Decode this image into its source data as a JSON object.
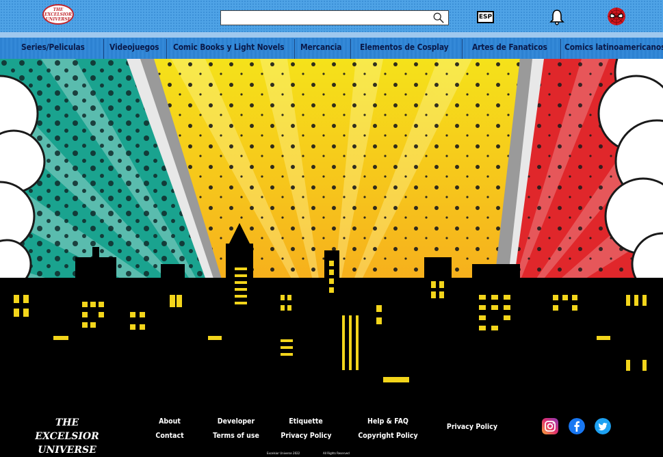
{
  "header": {
    "logo_text": "THE EXCELSIOR UNIVERSE",
    "search": {
      "value": "",
      "placeholder": ""
    },
    "lang_label": "ESP",
    "icons": {
      "search": "search-icon",
      "bell": "bell-icon",
      "avatar": "spiderman-avatar"
    }
  },
  "nav": {
    "items": [
      {
        "label": "Series/Peliculas"
      },
      {
        "label": "Videojuegos"
      },
      {
        "label": "Comic Books y Light Novels"
      },
      {
        "label": "Mercancia"
      },
      {
        "label": "Elementos de Cosplay"
      },
      {
        "label": "Artes de Fanaticos"
      },
      {
        "label": "Comics latinoamericanos"
      }
    ]
  },
  "footer": {
    "logo_line1": "THE EXCELSIOR",
    "logo_line2": "UNIVERSE",
    "links": {
      "about": "About",
      "contact": "Contact",
      "developer": "Developer",
      "terms": "Terms of use",
      "etiquette": "Etiquette",
      "privacy1": "Privacy Policy",
      "help": "Help & FAQ",
      "copyright": "Copyright Policy",
      "privacy2": "Privacy Policy"
    },
    "copyright_text": "Excelsior Universe 2022",
    "rights_text": "All Rights Reserved",
    "social": [
      "instagram-icon",
      "facebook-icon",
      "twitter-icon"
    ]
  },
  "colors": {
    "header_blue": "#4fa3e6",
    "nav_blue": "#2d82d2",
    "teal": "#1aa38f",
    "yellow": "#f5d20f",
    "orange": "#f7a41d",
    "red": "#e0272b",
    "window_yellow": "#f3d51b"
  }
}
